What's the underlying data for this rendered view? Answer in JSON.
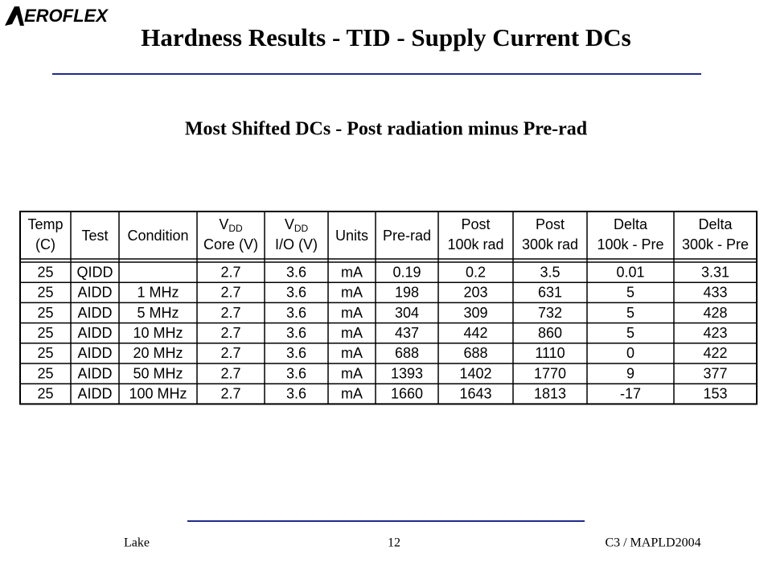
{
  "logo": "EROFLEX",
  "title": "Hardness Results - TID - Supply Current DCs",
  "subtitle": "Most Shifted DCs - Post radiation minus Pre-rad",
  "table": {
    "header": [
      {
        "line1": "Temp",
        "line2": "(C)"
      },
      {
        "line1": "Test"
      },
      {
        "line1": "Condition"
      },
      {
        "line1": "V",
        "line1_sub": "DD",
        "line2": "Core (V)"
      },
      {
        "line1": "V",
        "line1_sub": "DD",
        "line2": "I/O (V)"
      },
      {
        "line1": "Units"
      },
      {
        "line1": "Pre-rad"
      },
      {
        "line1": "Post",
        "line2": "100k rad"
      },
      {
        "line1": "Post",
        "line2": "300k rad"
      },
      {
        "line1": "Delta",
        "line2": "100k - Pre"
      },
      {
        "line1": "Delta",
        "line2": "300k - Pre"
      }
    ],
    "rows": [
      [
        25,
        "QIDD",
        null,
        2.7,
        3.6,
        "mA",
        0.19,
        0.2,
        3.5,
        0.01,
        3.31
      ],
      [
        25,
        "AIDD",
        "1 MHz",
        2.7,
        3.6,
        "mA",
        198,
        203,
        631,
        5,
        433
      ],
      [
        25,
        "AIDD",
        "5 MHz",
        2.7,
        3.6,
        "mA",
        304,
        309,
        732,
        5,
        428
      ],
      [
        25,
        "AIDD",
        "10 MHz",
        2.7,
        3.6,
        "mA",
        437,
        442,
        860,
        5,
        423
      ],
      [
        25,
        "AIDD",
        "20 MHz",
        2.7,
        3.6,
        "mA",
        688,
        688,
        1110,
        0,
        422
      ],
      [
        25,
        "AIDD",
        "50 MHz",
        2.7,
        3.6,
        "mA",
        1393,
        1402,
        1770,
        9,
        377
      ],
      [
        25,
        "AIDD",
        "100 MHz",
        2.7,
        3.6,
        "mA",
        1660,
        1643,
        1813,
        -17,
        153
      ]
    ]
  },
  "footer": {
    "left": "Lake",
    "center": "12",
    "right": "C3 / MAPLD2004"
  }
}
